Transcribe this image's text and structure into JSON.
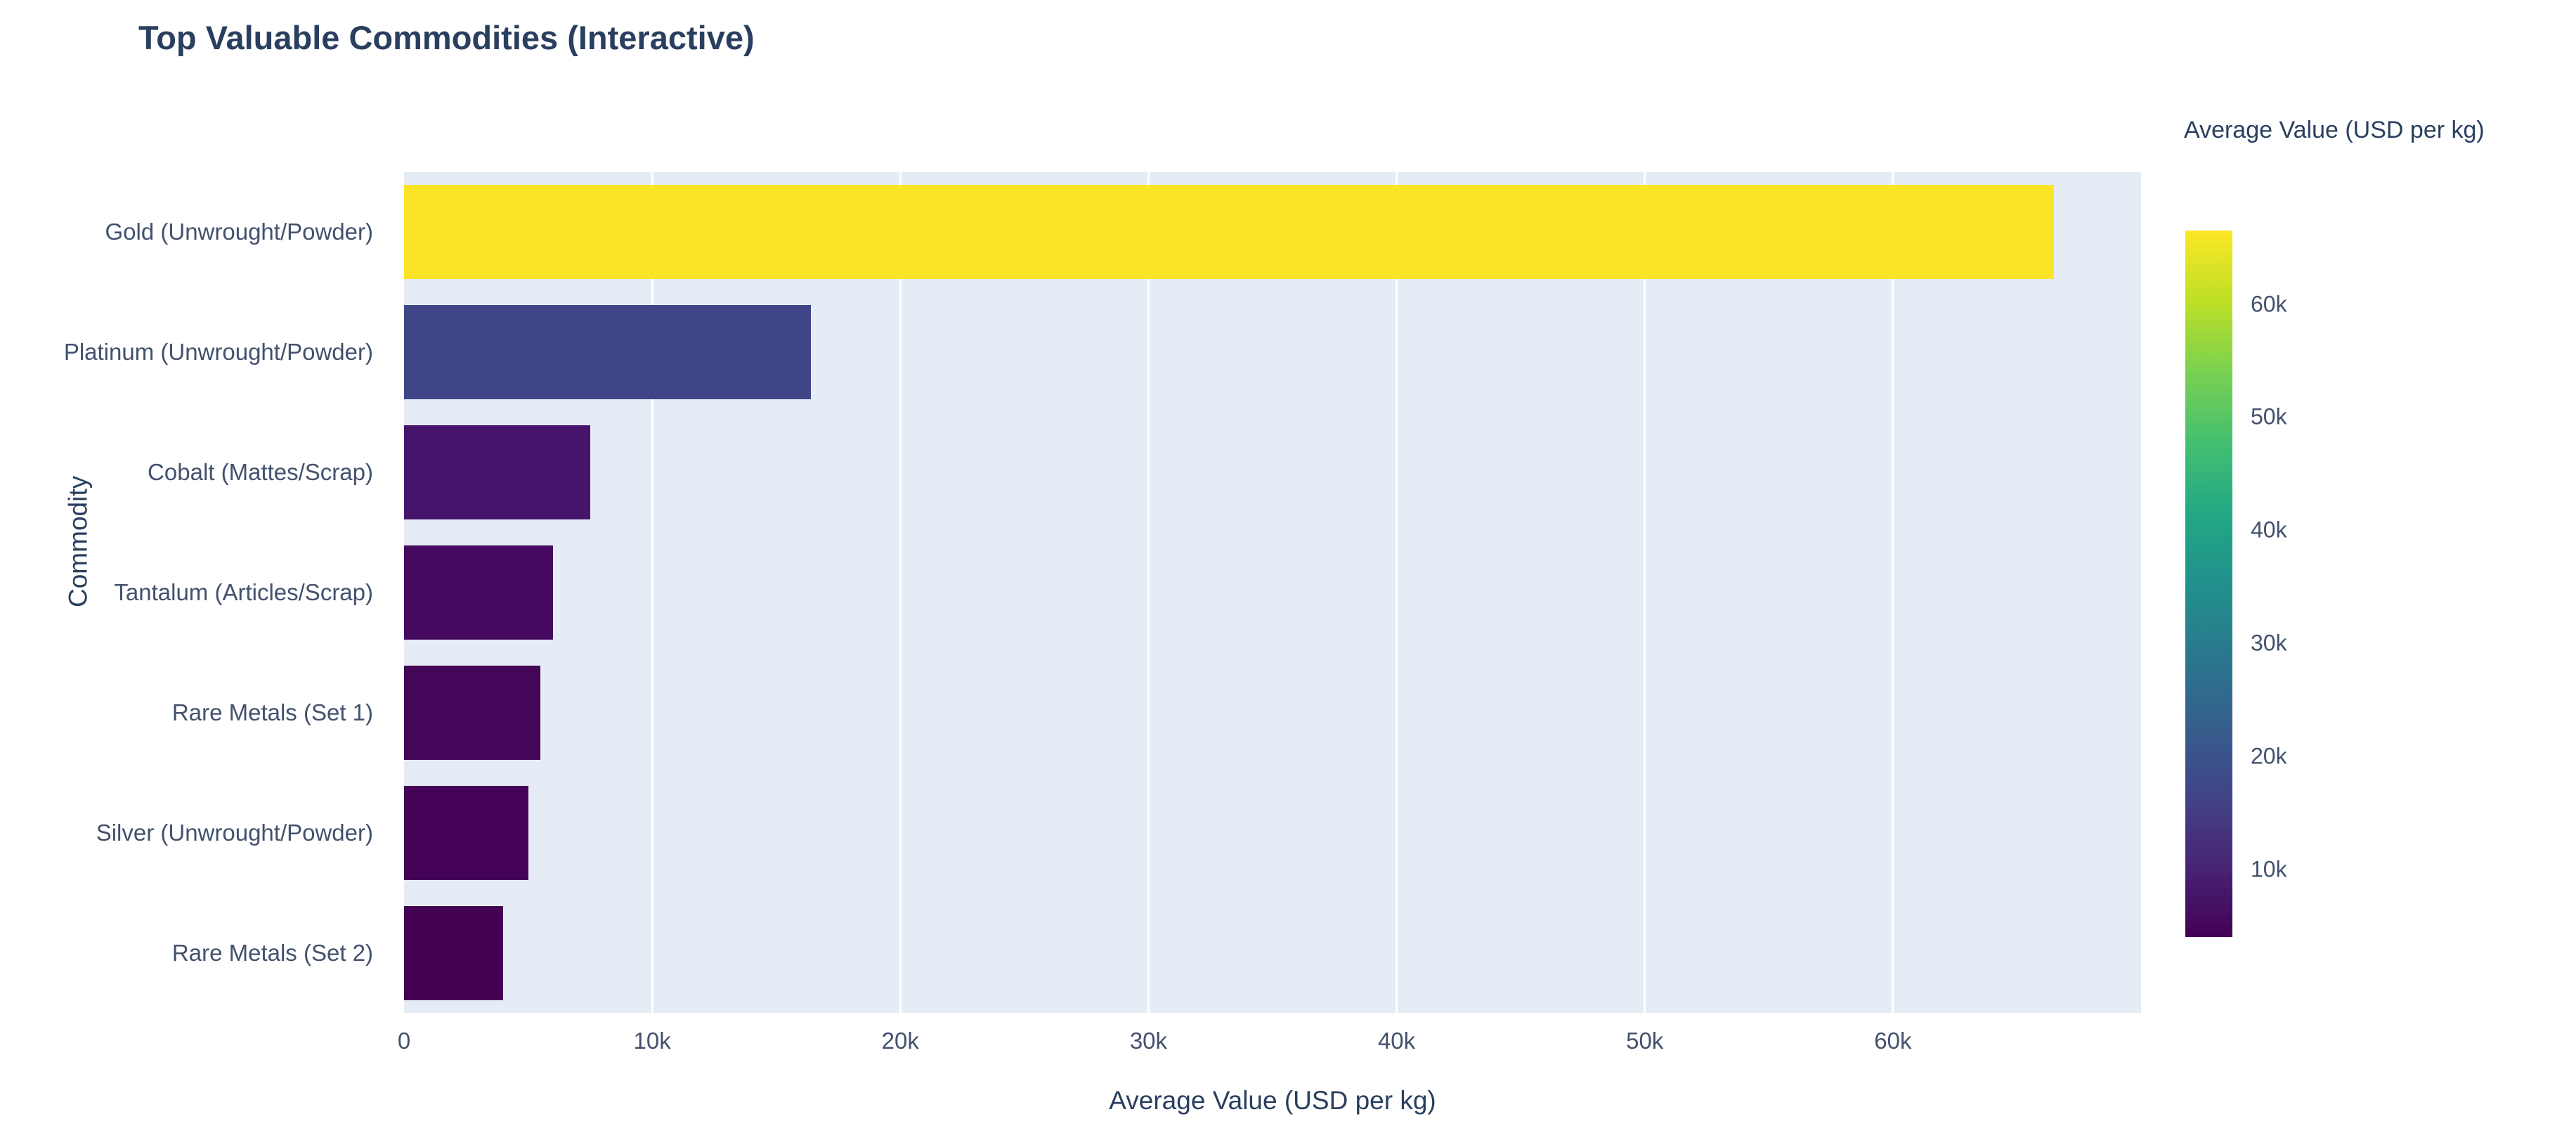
{
  "title": "Top Valuable Commodities (Interactive)",
  "chart_data": {
    "type": "bar",
    "orientation": "horizontal",
    "title": "Top Valuable Commodities (Interactive)",
    "xlabel": "Average Value (USD per kg)",
    "ylabel": "Commodity",
    "categories": [
      "Gold (Unwrought/Powder)",
      "Platinum (Unwrought/Powder)",
      "Cobalt (Mattes/Scrap)",
      "Tantalum (Articles/Scrap)",
      "Rare Metals (Set 1)",
      "Silver (Unwrought/Powder)",
      "Rare Metals (Set 2)"
    ],
    "values": [
      66500,
      16400,
      7500,
      6000,
      5500,
      5000,
      4000
    ],
    "bar_colors": [
      "#fbe426",
      "#3f4587",
      "#46146a",
      "#45095f",
      "#440659",
      "#440357",
      "#440154"
    ],
    "xlim": [
      0,
      70000
    ],
    "xticks": [
      {
        "value": 0,
        "label": "0"
      },
      {
        "value": 10000,
        "label": "10k"
      },
      {
        "value": 20000,
        "label": "20k"
      },
      {
        "value": 30000,
        "label": "30k"
      },
      {
        "value": 40000,
        "label": "40k"
      },
      {
        "value": 50000,
        "label": "50k"
      },
      {
        "value": 60000,
        "label": "60k"
      }
    ],
    "grid": true,
    "legend_position": "none",
    "colorbar": {
      "title": "Average Value (USD per kg)",
      "min": 4000,
      "max": 66500,
      "colorscale": "Viridis",
      "gradient_bottom_to_top": [
        "#440154",
        "#482475",
        "#414487",
        "#355f8d",
        "#2a788e",
        "#21918c",
        "#22a884",
        "#44bf70",
        "#7ad151",
        "#bddf26",
        "#fde725"
      ],
      "ticks": [
        {
          "value": 10000,
          "label": "10k"
        },
        {
          "value": 20000,
          "label": "20k"
        },
        {
          "value": 30000,
          "label": "30k"
        },
        {
          "value": 40000,
          "label": "40k"
        },
        {
          "value": 50000,
          "label": "50k"
        },
        {
          "value": 60000,
          "label": "60k"
        }
      ]
    }
  },
  "layout_colors": {
    "plot_background": "#e5ecf6",
    "gridline": "#ffffff",
    "tick_text": "#42516d",
    "title_text": "#2a3f5f"
  }
}
